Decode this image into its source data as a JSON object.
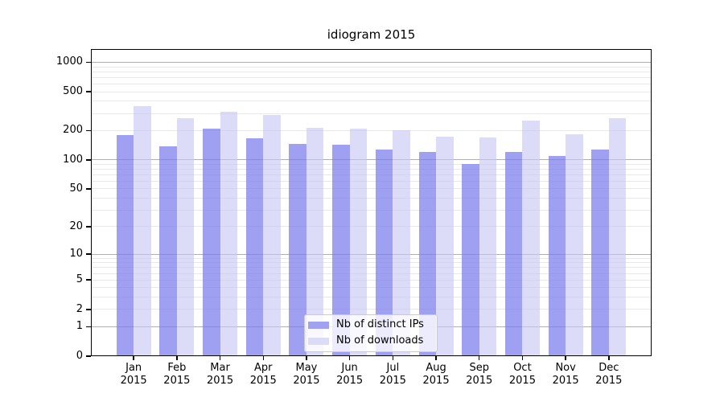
{
  "chart_data": {
    "type": "bar",
    "title": "idiogram 2015",
    "categories": [
      "Jan",
      "Feb",
      "Mar",
      "Apr",
      "May",
      "Jun",
      "Jul",
      "Aug",
      "Sep",
      "Oct",
      "Nov",
      "Dec"
    ],
    "year_label": "2015",
    "series": [
      {
        "name": "Nb of distinct IPs",
        "color": "#a1a1f2",
        "fill": "rgba(123,123,237,0.72)",
        "values": [
          180,
          138,
          209,
          167,
          146,
          143,
          128,
          121,
          91,
          121,
          110,
          128
        ]
      },
      {
        "name": "Nb of downloads",
        "color": "#dcdcf8",
        "fill": "rgba(198,198,244,0.62)",
        "values": [
          355,
          268,
          312,
          289,
          213,
          209,
          200,
          173,
          170,
          251,
          183,
          268
        ]
      }
    ],
    "yscale": "log1p",
    "ylim": [
      0,
      1366
    ],
    "yticks": [
      1000,
      500,
      200,
      100,
      50,
      20,
      10,
      5,
      2,
      1,
      0
    ],
    "major_gridlines": [
      1,
      10,
      100,
      1000
    ],
    "minor_gridlines": [
      2,
      3,
      4,
      5,
      6,
      7,
      8,
      9,
      20,
      30,
      40,
      50,
      60,
      70,
      80,
      90,
      200,
      300,
      400,
      500,
      600,
      700,
      800,
      900
    ],
    "grid": true,
    "xlabel": "",
    "ylabel": "",
    "legend": {
      "position": "lower center",
      "items": [
        "Nb of distinct IPs",
        "Nb of downloads"
      ]
    },
    "colors": {
      "grid_major": "#b0b0b0",
      "grid_minor": "#e8e8e8",
      "spine": "#000000",
      "background": "#ffffff",
      "text": "#000000"
    }
  }
}
